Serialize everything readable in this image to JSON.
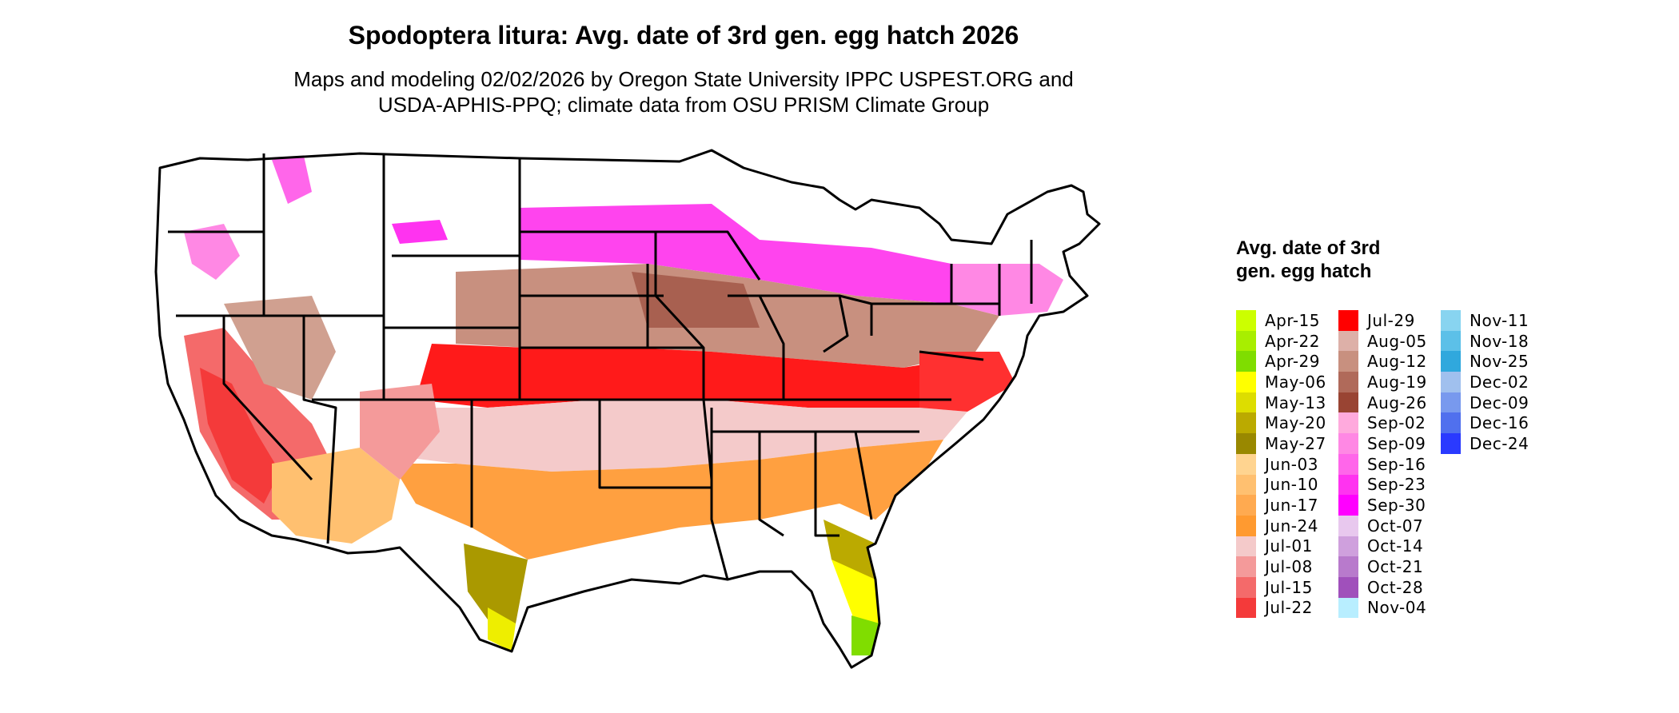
{
  "title": "Spodoptera litura: Avg. date of 3rd gen. egg hatch 2026",
  "subtitle_line1": "Maps and modeling 02/02/2026 by Oregon State University IPPC USPEST.ORG and",
  "subtitle_line2": "USDA-APHIS-PPQ; climate data from OSU PRISM Climate Group",
  "legend": {
    "title": "Avg. date of 3rd gen. egg hatch",
    "columns": [
      [
        {
          "label": "Apr-15",
          "color": "#ccff00"
        },
        {
          "label": "Apr-22",
          "color": "#a8ee00"
        },
        {
          "label": "Apr-29",
          "color": "#7fdd00"
        },
        {
          "label": "May-06",
          "color": "#ffff00"
        },
        {
          "label": "May-13",
          "color": "#dddd00"
        },
        {
          "label": "May-20",
          "color": "#bbaa00"
        },
        {
          "label": "May-27",
          "color": "#998800"
        },
        {
          "label": "Jun-03",
          "color": "#ffd490"
        },
        {
          "label": "Jun-10",
          "color": "#ffc070"
        },
        {
          "label": "Jun-17",
          "color": "#ffaa50"
        },
        {
          "label": "Jun-24",
          "color": "#ff9a30"
        },
        {
          "label": "Jul-01",
          "color": "#f4caca"
        },
        {
          "label": "Jul-08",
          "color": "#f49a9a"
        },
        {
          "label": "Jul-15",
          "color": "#f46a6a"
        },
        {
          "label": "Jul-22",
          "color": "#f43a3a"
        }
      ],
      [
        {
          "label": "Jul-29",
          "color": "#ff0000"
        },
        {
          "label": "Aug-05",
          "color": "#ddb0a8"
        },
        {
          "label": "Aug-12",
          "color": "#c8907f"
        },
        {
          "label": "Aug-19",
          "color": "#b06a5a"
        },
        {
          "label": "Aug-26",
          "color": "#994433"
        },
        {
          "label": "Sep-02",
          "color": "#ffaadd"
        },
        {
          "label": "Sep-09",
          "color": "#ff88e4"
        },
        {
          "label": "Sep-16",
          "color": "#ff66ea"
        },
        {
          "label": "Sep-23",
          "color": "#ff33f0"
        },
        {
          "label": "Sep-30",
          "color": "#ff00ff"
        },
        {
          "label": "Oct-07",
          "color": "#e8c8ee"
        },
        {
          "label": "Oct-14",
          "color": "#cfa0dd"
        },
        {
          "label": "Oct-21",
          "color": "#b87acc"
        },
        {
          "label": "Oct-28",
          "color": "#a050bb"
        },
        {
          "label": "Nov-04",
          "color": "#b8eeff"
        }
      ],
      [
        {
          "label": "Nov-11",
          "color": "#88d4f0"
        },
        {
          "label": "Nov-18",
          "color": "#5cc0e8"
        },
        {
          "label": "Nov-25",
          "color": "#30a8dd"
        },
        {
          "label": "Dec-02",
          "color": "#a0c0ee"
        },
        {
          "label": "Dec-09",
          "color": "#7899ee"
        },
        {
          "label": "Dec-16",
          "color": "#5070ee"
        },
        {
          "label": "Dec-24",
          "color": "#2a3aff"
        }
      ]
    ]
  }
}
